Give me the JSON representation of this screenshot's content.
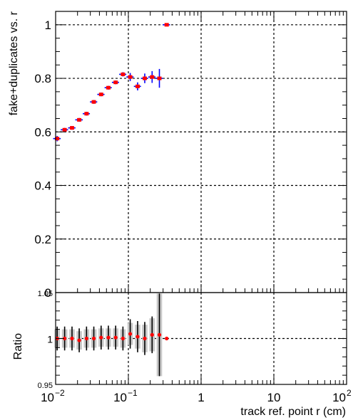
{
  "chart_data": [
    {
      "type": "scatter",
      "ylabel": "fake+duplicates vs. r",
      "x_scale": "log",
      "xlim": [
        0.01,
        100
      ],
      "ylim": [
        0,
        1.05
      ],
      "grid": true,
      "y_tick_labels": [
        "0",
        "0.2",
        "0.4",
        "0.6",
        "0.8",
        "1"
      ],
      "y_ticks": [
        0,
        0.2,
        0.4,
        0.6,
        0.8,
        1
      ],
      "series": [
        {
          "marker_color": "#ff0000",
          "error_color": "#0000ff",
          "x": [
            0.0105,
            0.0133,
            0.0168,
            0.0211,
            0.0266,
            0.0335,
            0.0422,
            0.0531,
            0.0669,
            0.0842,
            0.106,
            0.134,
            0.168,
            0.212,
            0.267,
            0.336
          ],
          "y": [
            0.575,
            0.608,
            0.615,
            0.645,
            0.668,
            0.712,
            0.74,
            0.765,
            0.785,
            0.815,
            0.805,
            0.77,
            0.8,
            0.805,
            0.8,
            1.0
          ],
          "yerr": [
            0.01,
            0.007,
            0.007,
            0.007,
            0.007,
            0.007,
            0.007,
            0.007,
            0.007,
            0.008,
            0.015,
            0.015,
            0.018,
            0.022,
            0.035,
            0.0
          ],
          "xerr": [
            0.00125,
            0.00155,
            0.00195,
            0.0025,
            0.003,
            0.0038,
            0.0048,
            0.006,
            0.0075,
            0.0095,
            0.012,
            0.015,
            0.019,
            0.024,
            0.03,
            0.038
          ]
        }
      ]
    },
    {
      "type": "scatter",
      "ylabel": "Ratio",
      "xlabel": "track ref. point r (cm)",
      "x_scale": "log",
      "xlim": [
        0.01,
        100
      ],
      "ylim": [
        0.95,
        1.05
      ],
      "grid": true,
      "y_tick_labels": [
        "0.95",
        "1",
        "1.05"
      ],
      "y_ticks": [
        0.95,
        1.0,
        1.05
      ],
      "x_tick_labels": [
        "10",
        "−2",
        "10",
        "−1",
        "1",
        "10",
        "10",
        "2"
      ],
      "series": [
        {
          "marker_color": "#ff0000",
          "error_color": "#000000",
          "band_color": "#c8c8c8",
          "x": [
            0.0105,
            0.0133,
            0.0168,
            0.0211,
            0.0266,
            0.0335,
            0.0422,
            0.0531,
            0.0669,
            0.0842,
            0.106,
            0.134,
            0.168,
            0.212,
            0.267,
            0.336
          ],
          "y": [
            1.0,
            1.0,
            1.0,
            0.998,
            1.0,
            1.0,
            1.001,
            1.001,
            1.001,
            1.0,
            1.005,
            1.002,
            1.0,
            1.004,
            1.004,
            1.0
          ],
          "yerr": [
            0.013,
            0.013,
            0.013,
            0.013,
            0.013,
            0.013,
            0.013,
            0.013,
            0.013,
            0.013,
            0.016,
            0.017,
            0.018,
            0.02,
            0.045,
            0.0
          ],
          "band": [
            0.01,
            0.01,
            0.01,
            0.01,
            0.01,
            0.01,
            0.01,
            0.01,
            0.01,
            0.01,
            0.012,
            0.013,
            0.015,
            0.018,
            0.045,
            0.0
          ]
        }
      ]
    }
  ]
}
